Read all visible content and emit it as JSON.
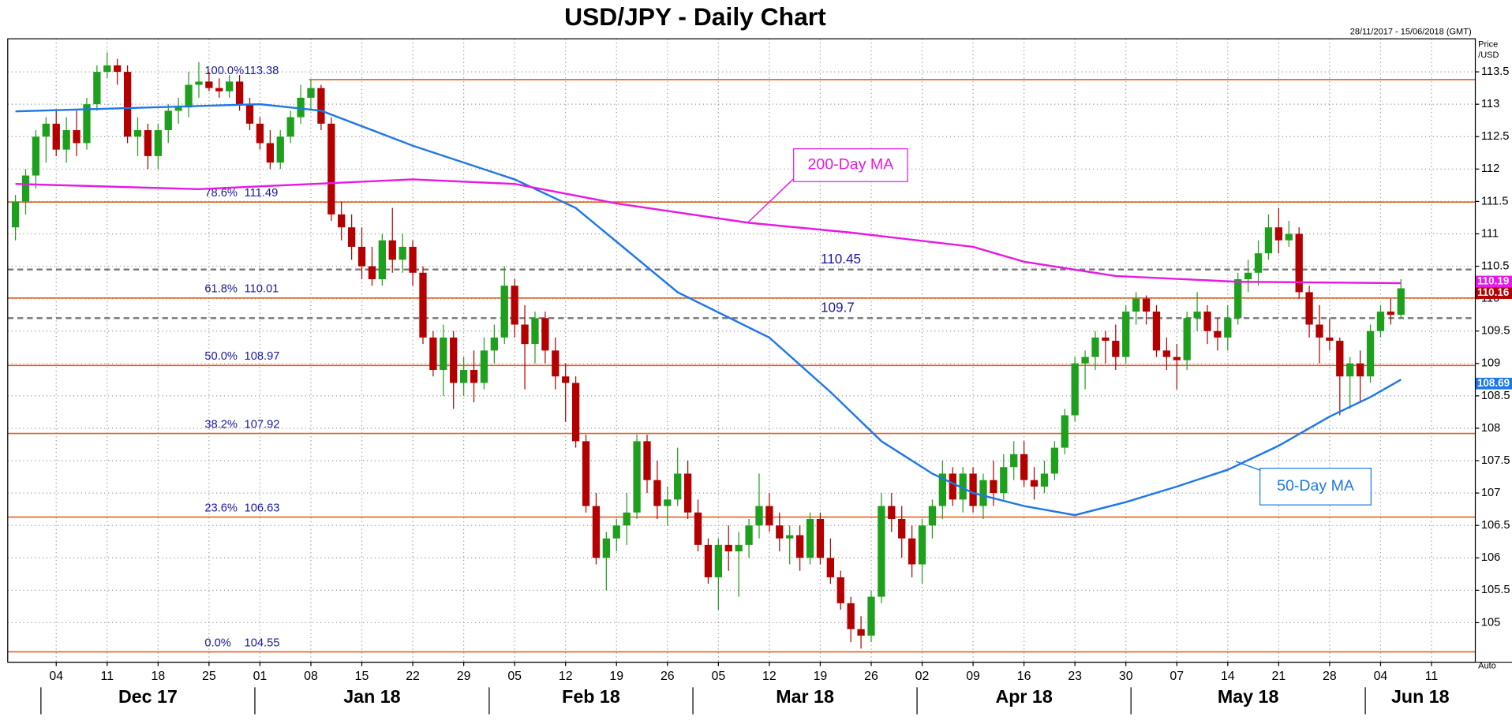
{
  "chart_data": {
    "type": "candlestick",
    "title": "USD/JPY - Daily Chart",
    "date_range": "28/11/2017 - 15/06/2018 (GMT)",
    "y_axis_label": "Price /USD",
    "scale_mode": "Auto",
    "up_color": "#1ea01e",
    "down_color": "#b40000",
    "grid": true,
    "xlim": [
      -0.76,
      143.3
    ],
    "ylim": [
      104.39,
      114.01
    ],
    "yticks": [
      105,
      105.5,
      106,
      106.5,
      107,
      107.5,
      108,
      108.5,
      109,
      109.5,
      110,
      110.5,
      111,
      111.5,
      112,
      112.5,
      113,
      113.5
    ],
    "xticks": [
      {
        "value": 4,
        "label": "04"
      },
      {
        "value": 9,
        "label": "11"
      },
      {
        "value": 14,
        "label": "18"
      },
      {
        "value": 19,
        "label": "25"
      },
      {
        "value": 24,
        "label": "01"
      },
      {
        "value": 29,
        "label": "08"
      },
      {
        "value": 34,
        "label": "15"
      },
      {
        "value": 39,
        "label": "22"
      },
      {
        "value": 44,
        "label": "29"
      },
      {
        "value": 49,
        "label": "05"
      },
      {
        "value": 54,
        "label": "12"
      },
      {
        "value": 59,
        "label": "19"
      },
      {
        "value": 64,
        "label": "26"
      },
      {
        "value": 69,
        "label": "05"
      },
      {
        "value": 74,
        "label": "12"
      },
      {
        "value": 79,
        "label": "19"
      },
      {
        "value": 84,
        "label": "26"
      },
      {
        "value": 89,
        "label": "02"
      },
      {
        "value": 94,
        "label": "09"
      },
      {
        "value": 99,
        "label": "16"
      },
      {
        "value": 104,
        "label": "23"
      },
      {
        "value": 109,
        "label": "30"
      },
      {
        "value": 114,
        "label": "07"
      },
      {
        "value": 119,
        "label": "14"
      },
      {
        "value": 124,
        "label": "21"
      },
      {
        "value": 129,
        "label": "28"
      },
      {
        "value": 134,
        "label": "04"
      },
      {
        "value": 139,
        "label": "11"
      }
    ],
    "months": [
      "Dec 17",
      "Jan 18",
      "Feb 18",
      "Mar 18",
      "Apr 18",
      "May 18",
      "Jun 18"
    ],
    "ohlc": [
      [
        111.1,
        111.6,
        110.9,
        111.5
      ],
      [
        111.5,
        112.0,
        111.3,
        111.9
      ],
      [
        111.9,
        112.6,
        111.7,
        112.5
      ],
      [
        112.5,
        112.8,
        112.1,
        112.7
      ],
      [
        112.7,
        112.9,
        112.2,
        112.3
      ],
      [
        112.3,
        112.8,
        112.1,
        112.6
      ],
      [
        112.6,
        112.9,
        112.2,
        112.4
      ],
      [
        112.4,
        113.1,
        112.3,
        113.0
      ],
      [
        113.0,
        113.6,
        112.9,
        113.5
      ],
      [
        113.5,
        113.8,
        113.4,
        113.6
      ],
      [
        113.6,
        113.7,
        113.3,
        113.5
      ],
      [
        113.5,
        113.6,
        112.4,
        112.5
      ],
      [
        112.5,
        112.8,
        112.2,
        112.6
      ],
      [
        112.6,
        112.7,
        112.0,
        112.2
      ],
      [
        112.2,
        112.7,
        112.0,
        112.6
      ],
      [
        112.6,
        113.0,
        112.4,
        112.9
      ],
      [
        112.9,
        113.1,
        112.7,
        112.95
      ],
      [
        112.95,
        113.5,
        112.8,
        113.3
      ],
      [
        113.3,
        113.65,
        113.1,
        113.35
      ],
      [
        113.35,
        113.5,
        113.2,
        113.25
      ],
      [
        113.25,
        113.4,
        113.1,
        113.2
      ],
      [
        113.2,
        113.45,
        113.1,
        113.35
      ],
      [
        113.35,
        113.45,
        112.9,
        113.0
      ],
      [
        113.0,
        113.1,
        112.6,
        112.7
      ],
      [
        112.7,
        112.8,
        112.3,
        112.4
      ],
      [
        112.4,
        112.6,
        112.0,
        112.1
      ],
      [
        112.1,
        112.6,
        112.0,
        112.5
      ],
      [
        112.5,
        112.9,
        112.4,
        112.8
      ],
      [
        112.8,
        113.3,
        112.7,
        113.1
      ],
      [
        113.1,
        113.38,
        112.9,
        113.25
      ],
      [
        113.25,
        113.3,
        112.6,
        112.7
      ],
      [
        112.7,
        112.8,
        111.2,
        111.3
      ],
      [
        111.3,
        111.5,
        110.9,
        111.1
      ],
      [
        111.1,
        111.3,
        110.6,
        110.8
      ],
      [
        110.8,
        111.1,
        110.3,
        110.5
      ],
      [
        110.5,
        110.8,
        110.2,
        110.3
      ],
      [
        110.3,
        111.0,
        110.2,
        110.9
      ],
      [
        110.9,
        111.4,
        110.4,
        110.6
      ],
      [
        110.6,
        111.0,
        110.4,
        110.8
      ],
      [
        110.8,
        110.9,
        110.2,
        110.4
      ],
      [
        110.4,
        110.5,
        109.3,
        109.4
      ],
      [
        109.4,
        109.5,
        108.8,
        108.9
      ],
      [
        108.9,
        109.6,
        108.5,
        109.4
      ],
      [
        109.4,
        109.5,
        108.3,
        108.7
      ],
      [
        108.7,
        109.1,
        108.5,
        108.9
      ],
      [
        108.9,
        109.2,
        108.4,
        108.7
      ],
      [
        108.7,
        109.4,
        108.6,
        109.2
      ],
      [
        109.2,
        109.6,
        109.0,
        109.4
      ],
      [
        109.4,
        110.5,
        109.3,
        110.2
      ],
      [
        110.2,
        110.3,
        109.4,
        109.6
      ],
      [
        109.6,
        109.9,
        108.6,
        109.3
      ],
      [
        109.3,
        109.8,
        109.0,
        109.7
      ],
      [
        109.7,
        109.8,
        109.0,
        109.2
      ],
      [
        109.2,
        109.4,
        108.6,
        108.8
      ],
      [
        108.8,
        109.0,
        108.1,
        108.7
      ],
      [
        108.7,
        108.8,
        107.7,
        107.8
      ],
      [
        107.8,
        107.9,
        106.7,
        106.8
      ],
      [
        106.8,
        107.0,
        105.9,
        106.0
      ],
      [
        106.0,
        106.4,
        105.5,
        106.3
      ],
      [
        106.3,
        106.6,
        106.1,
        106.5
      ],
      [
        106.5,
        107.0,
        106.2,
        106.7
      ],
      [
        106.7,
        107.9,
        106.6,
        107.8
      ],
      [
        107.8,
        107.9,
        107.0,
        107.2
      ],
      [
        107.2,
        107.5,
        106.6,
        106.8
      ],
      [
        106.8,
        107.1,
        106.5,
        106.9
      ],
      [
        106.9,
        107.7,
        106.8,
        107.3
      ],
      [
        107.3,
        107.5,
        106.6,
        106.7
      ],
      [
        106.7,
        106.9,
        106.1,
        106.2
      ],
      [
        106.2,
        106.3,
        105.6,
        105.7
      ],
      [
        105.7,
        106.3,
        105.2,
        106.2
      ],
      [
        106.2,
        106.5,
        105.8,
        106.1
      ],
      [
        106.1,
        106.4,
        105.4,
        106.2
      ],
      [
        106.2,
        106.6,
        106.0,
        106.5
      ],
      [
        106.5,
        107.3,
        106.3,
        106.8
      ],
      [
        106.8,
        107.0,
        106.4,
        106.5
      ],
      [
        106.5,
        106.7,
        106.1,
        106.3
      ],
      [
        106.3,
        106.5,
        105.9,
        106.35
      ],
      [
        106.35,
        106.5,
        105.8,
        106.0
      ],
      [
        106.0,
        106.7,
        105.9,
        106.6
      ],
      [
        106.6,
        106.7,
        105.9,
        106.0
      ],
      [
        106.0,
        106.3,
        105.6,
        105.7
      ],
      [
        105.7,
        105.8,
        105.2,
        105.3
      ],
      [
        105.3,
        105.4,
        104.7,
        104.9
      ],
      [
        104.9,
        105.1,
        104.6,
        104.8
      ],
      [
        104.8,
        105.5,
        104.7,
        105.4
      ],
      [
        105.4,
        107.0,
        105.3,
        106.8
      ],
      [
        106.8,
        107.0,
        106.4,
        106.6
      ],
      [
        106.6,
        106.8,
        106.0,
        106.3
      ],
      [
        106.3,
        106.5,
        105.7,
        105.9
      ],
      [
        105.9,
        106.6,
        105.6,
        106.5
      ],
      [
        106.5,
        106.9,
        106.3,
        106.8
      ],
      [
        106.8,
        107.5,
        106.6,
        107.3
      ],
      [
        107.3,
        107.4,
        106.8,
        106.9
      ],
      [
        106.9,
        107.4,
        106.7,
        107.3
      ],
      [
        107.3,
        107.4,
        106.7,
        106.8
      ],
      [
        106.8,
        107.3,
        106.6,
        107.2
      ],
      [
        107.2,
        107.5,
        106.8,
        107.0
      ],
      [
        107.0,
        107.6,
        106.9,
        107.4
      ],
      [
        107.4,
        107.8,
        107.2,
        107.6
      ],
      [
        107.6,
        107.8,
        107.1,
        107.2
      ],
      [
        107.2,
        107.4,
        106.9,
        107.1
      ],
      [
        107.1,
        107.5,
        107.0,
        107.3
      ],
      [
        107.3,
        107.8,
        107.2,
        107.7
      ],
      [
        107.7,
        108.3,
        107.6,
        108.2
      ],
      [
        108.2,
        109.1,
        108.1,
        109.0
      ],
      [
        109.0,
        109.2,
        108.6,
        109.1
      ],
      [
        109.1,
        109.5,
        108.9,
        109.4
      ],
      [
        109.4,
        109.5,
        109.0,
        109.35
      ],
      [
        109.35,
        109.6,
        108.9,
        109.1
      ],
      [
        109.1,
        109.9,
        109.0,
        109.8
      ],
      [
        109.8,
        110.1,
        109.6,
        110.0
      ],
      [
        110.0,
        110.05,
        109.6,
        109.8
      ],
      [
        109.8,
        109.9,
        109.1,
        109.2
      ],
      [
        109.2,
        109.4,
        108.9,
        109.1
      ],
      [
        109.1,
        109.3,
        108.6,
        109.05
      ],
      [
        109.05,
        109.8,
        108.9,
        109.7
      ],
      [
        109.7,
        110.1,
        109.5,
        109.8
      ],
      [
        109.8,
        109.9,
        109.3,
        109.5
      ],
      [
        109.5,
        109.7,
        109.2,
        109.4
      ],
      [
        109.4,
        109.9,
        109.2,
        109.7
      ],
      [
        109.7,
        110.4,
        109.6,
        110.3
      ],
      [
        110.3,
        110.6,
        110.1,
        110.4
      ],
      [
        110.4,
        110.9,
        110.2,
        110.7
      ],
      [
        110.7,
        111.3,
        110.6,
        111.1
      ],
      [
        111.1,
        111.4,
        110.7,
        110.9
      ],
      [
        110.9,
        111.2,
        110.8,
        111.0
      ],
      [
        111.0,
        111.1,
        110.0,
        110.1
      ],
      [
        110.1,
        110.2,
        109.4,
        109.6
      ],
      [
        109.6,
        109.9,
        109.0,
        109.4
      ],
      [
        109.4,
        109.7,
        109.2,
        109.35
      ],
      [
        109.35,
        109.4,
        108.2,
        108.8
      ],
      [
        108.8,
        109.1,
        108.3,
        109.0
      ],
      [
        109.0,
        109.2,
        108.4,
        108.8
      ],
      [
        108.8,
        109.6,
        108.7,
        109.5
      ],
      [
        109.5,
        109.9,
        109.4,
        109.8
      ],
      [
        109.8,
        110.0,
        109.6,
        109.75
      ],
      [
        109.75,
        110.3,
        109.7,
        110.16
      ]
    ],
    "series": [
      {
        "name": "50-Day MA",
        "color": "#1e78e6",
        "x": [
          0,
          24,
          30,
          39,
          49,
          55,
          65,
          74,
          80,
          85,
          90,
          94,
          99,
          104,
          109,
          114,
          119,
          124,
          129,
          133,
          136
        ],
        "values": [
          112.89,
          113.0,
          112.9,
          112.36,
          111.84,
          111.4,
          110.1,
          109.4,
          108.56,
          107.8,
          107.3,
          107.0,
          106.8,
          106.66,
          106.86,
          107.1,
          107.36,
          107.73,
          108.18,
          108.48,
          108.75
        ]
      },
      {
        "name": "200-Day MA",
        "color": "#e619e6",
        "x": [
          0,
          18,
          39,
          49,
          59,
          72,
          82,
          94,
          99,
          108,
          120,
          136
        ],
        "values": [
          111.77,
          111.69,
          111.84,
          111.77,
          111.47,
          111.17,
          111.02,
          110.8,
          110.57,
          110.35,
          110.26,
          110.24
        ]
      }
    ],
    "fib_color": "#e06020",
    "fib_levels": [
      {
        "pct": "100.0%",
        "value": 113.38
      },
      {
        "pct": "78.6%",
        "value": 111.49
      },
      {
        "pct": "61.8%",
        "value": 110.01
      },
      {
        "pct": "50.0%",
        "value": 108.97
      },
      {
        "pct": "38.2%",
        "value": 107.92
      },
      {
        "pct": "23.6%",
        "value": 106.63
      },
      {
        "pct": "0.0%",
        "value": 104.55
      }
    ],
    "levels": [
      110.45,
      109.7
    ],
    "price_tags": [
      {
        "value": 110.19,
        "color": "#e619e6"
      },
      {
        "value": 110.16,
        "color": "#b40000"
      },
      {
        "value": 108.69,
        "color": "#1e78e6"
      }
    ]
  }
}
